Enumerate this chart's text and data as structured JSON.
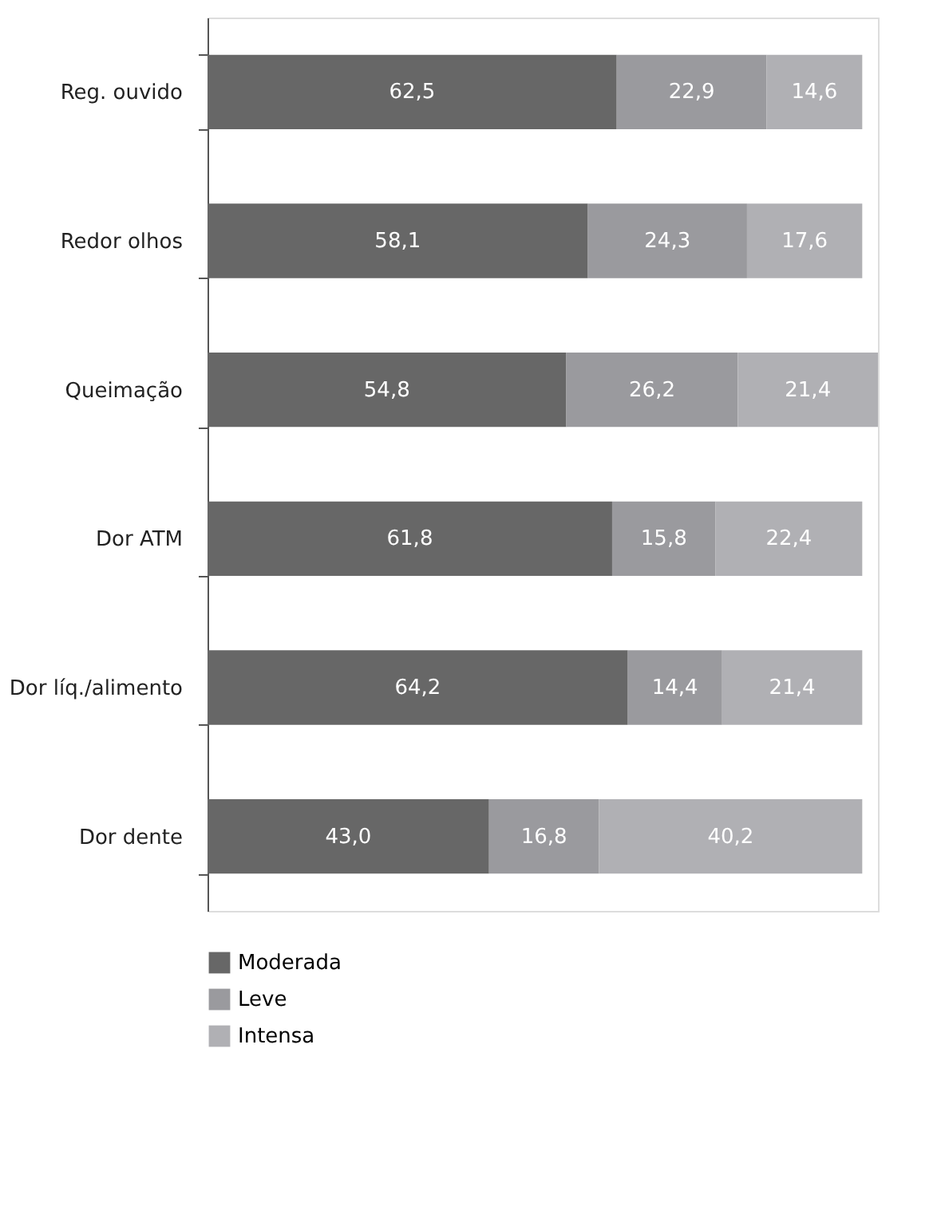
{
  "chart_data": {
    "type": "bar",
    "orientation": "horizontal",
    "stacked": true,
    "legend": "bottom left",
    "categories": [
      "Reg. ouvido",
      "Redor olhos",
      "Queimação",
      "Dor ATM",
      "Dor líq./alimento",
      "Dor dente"
    ],
    "series": [
      {
        "name": "Moderada",
        "color": "#676767",
        "values": [
          62.5,
          58.1,
          54.8,
          61.8,
          64.2,
          43.0
        ],
        "value_labels": [
          "62,5",
          "58,1",
          "54,8",
          "61,8",
          "64,2",
          "43,0"
        ]
      },
      {
        "name": "Leve",
        "color": "#9a9a9e",
        "values": [
          22.9,
          24.3,
          26.2,
          15.8,
          14.4,
          16.8
        ],
        "value_labels": [
          "22,9",
          "24,3",
          "26,2",
          "15,8",
          "14,4",
          "16,8"
        ]
      },
      {
        "name": "Intensa",
        "color": "#b0b0b4",
        "values": [
          14.6,
          17.6,
          21.4,
          22.4,
          21.4,
          40.2
        ],
        "value_labels": [
          "14,6",
          "17,6",
          "21,4",
          "22,4",
          "21,4",
          "40,2"
        ]
      }
    ]
  }
}
